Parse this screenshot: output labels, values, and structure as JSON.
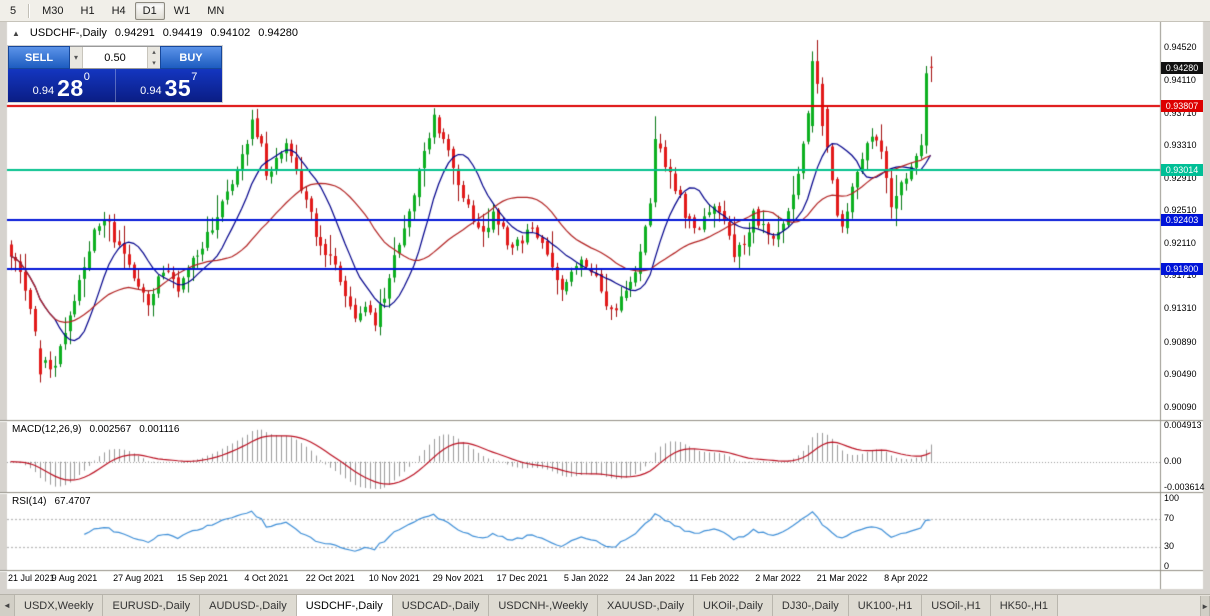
{
  "icons": {
    "collapse": "▲",
    "caret_down": "▾",
    "caret_up": "▴",
    "tab_left": "◄",
    "tab_right": "►"
  },
  "toolbar": {
    "timeframes": [
      {
        "label": "5",
        "active": false
      },
      {
        "label": "M30",
        "active": false
      },
      {
        "label": "H1",
        "active": false
      },
      {
        "label": "H4",
        "active": false
      },
      {
        "label": "D1",
        "active": true
      },
      {
        "label": "W1",
        "active": false
      },
      {
        "label": "MN",
        "active": false
      }
    ]
  },
  "chart_window": {
    "title": {
      "symbol": "USDCHF-,Daily",
      "open": "0.94291",
      "high": "0.94419",
      "low": "0.94102",
      "close": "0.94280"
    },
    "trade_panel": {
      "sell_label": "SELL",
      "buy_label": "BUY",
      "lot_size": "0.50",
      "bid": {
        "prefix": "0.94",
        "big": "28",
        "sup": "0",
        "full": "0.94280"
      },
      "ask": {
        "prefix": "0.94",
        "big": "35",
        "sup": "7",
        "full": "0.94357"
      }
    }
  },
  "chart_data": {
    "type": "candlestick",
    "symbol": "USDCHF-",
    "timeframe": "Daily",
    "latest_ohlc": {
      "open": 0.94291,
      "high": 0.94419,
      "low": 0.94102,
      "close": 0.9428
    },
    "y_range": [
      0.8995,
      0.9483
    ],
    "y_ticks": [
      "0.94520",
      "0.94110",
      "0.93710",
      "0.93310",
      "0.92910",
      "0.92510",
      "0.92110",
      "0.91710",
      "0.91310",
      "0.90890",
      "0.90490",
      "0.90090"
    ],
    "x_ticks": [
      "21 Jul 2021",
      "9 Aug 2021",
      "27 Aug 2021",
      "15 Sep 2021",
      "4 Oct 2021",
      "22 Oct 2021",
      "10 Nov 2021",
      "29 Nov 2021",
      "17 Dec 2021",
      "5 Jan 2022",
      "24 Jan 2022",
      "11 Feb 2022",
      "2 Mar 2022",
      "21 Mar 2022",
      "8 Apr 2022"
    ],
    "hlines": [
      {
        "price": 0.93807,
        "color": "#dd0000"
      },
      {
        "price": 0.93014,
        "color": "#00c08b"
      },
      {
        "price": 0.92403,
        "color": "#0014d8"
      },
      {
        "price": 0.918,
        "color": "#0014d8"
      }
    ],
    "price_badges": [
      {
        "name": "current-price-badge",
        "value": "0.94280",
        "color": "#111111"
      },
      {
        "name": "resistance-line-badge",
        "value": "0.93807",
        "color": "#dd0000"
      },
      {
        "name": "teal-level-badge",
        "value": "0.93014",
        "color": "#00bf96"
      },
      {
        "name": "support-line-badge-1",
        "value": "0.92403",
        "color": "#0014d8"
      },
      {
        "name": "support-line-badge-2",
        "value": "0.91800",
        "color": "#0014d8"
      }
    ],
    "colors": {
      "bull": "#0db020",
      "bear": "#e21a1a",
      "bull_wick": "#0a7a17",
      "bear_wick": "#a31111",
      "ma_fast": "#00008b",
      "ma_slow": "#b22222",
      "macd_hist": "#9b9b9b",
      "macd_signal": "#bb1122",
      "rsi_line": "#4090d8"
    },
    "candles": {
      "count": 188,
      "seed": 9,
      "path_waypoints": [
        [
          0,
          0.92
        ],
        [
          2,
          0.9175
        ],
        [
          4,
          0.9135
        ],
        [
          6,
          0.907
        ],
        [
          8,
          0.9052
        ],
        [
          10,
          0.9078
        ],
        [
          12,
          0.912
        ],
        [
          14,
          0.9165
        ],
        [
          16,
          0.9208
        ],
        [
          18,
          0.9238
        ],
        [
          20,
          0.9232
        ],
        [
          22,
          0.9205
        ],
        [
          24,
          0.918
        ],
        [
          26,
          0.9155
        ],
        [
          28,
          0.9142
        ],
        [
          30,
          0.9165
        ],
        [
          32,
          0.918
        ],
        [
          34,
          0.9152
        ],
        [
          36,
          0.9176
        ],
        [
          38,
          0.92
        ],
        [
          40,
          0.9222
        ],
        [
          42,
          0.9246
        ],
        [
          44,
          0.9272
        ],
        [
          46,
          0.9305
        ],
        [
          48,
          0.9338
        ],
        [
          49,
          0.9362
        ],
        [
          51,
          0.933
        ],
        [
          52,
          0.9296
        ],
        [
          54,
          0.9315
        ],
        [
          56,
          0.933
        ],
        [
          58,
          0.9302
        ],
        [
          60,
          0.9262
        ],
        [
          62,
          0.9226
        ],
        [
          64,
          0.92
        ],
        [
          66,
          0.918
        ],
        [
          68,
          0.915
        ],
        [
          70,
          0.9124
        ],
        [
          72,
          0.9136
        ],
        [
          74,
          0.9116
        ],
        [
          76,
          0.9146
        ],
        [
          78,
          0.9192
        ],
        [
          80,
          0.9232
        ],
        [
          82,
          0.9272
        ],
        [
          84,
          0.9322
        ],
        [
          86,
          0.9366
        ],
        [
          88,
          0.9338
        ],
        [
          90,
          0.9304
        ],
        [
          92,
          0.927
        ],
        [
          94,
          0.9242
        ],
        [
          96,
          0.9222
        ],
        [
          98,
          0.9246
        ],
        [
          100,
          0.9226
        ],
        [
          102,
          0.9206
        ],
        [
          104,
          0.9216
        ],
        [
          106,
          0.9236
        ],
        [
          108,
          0.9212
        ],
        [
          110,
          0.9182
        ],
        [
          112,
          0.9158
        ],
        [
          114,
          0.9176
        ],
        [
          116,
          0.9196
        ],
        [
          118,
          0.918
        ],
        [
          120,
          0.9154
        ],
        [
          122,
          0.9124
        ],
        [
          124,
          0.9142
        ],
        [
          126,
          0.9168
        ],
        [
          128,
          0.9196
        ],
        [
          130,
          0.9262
        ],
        [
          131,
          0.9338
        ],
        [
          133,
          0.9312
        ],
        [
          135,
          0.9282
        ],
        [
          137,
          0.9248
        ],
        [
          139,
          0.9224
        ],
        [
          141,
          0.9244
        ],
        [
          143,
          0.9258
        ],
        [
          145,
          0.9238
        ],
        [
          147,
          0.9196
        ],
        [
          149,
          0.9214
        ],
        [
          151,
          0.9246
        ],
        [
          153,
          0.923
        ],
        [
          155,
          0.9212
        ],
        [
          157,
          0.9232
        ],
        [
          159,
          0.9278
        ],
        [
          161,
          0.933
        ],
        [
          163,
          0.942
        ],
        [
          164,
          0.943
        ],
        [
          165,
          0.9378
        ],
        [
          166,
          0.933
        ],
        [
          167,
          0.9284
        ],
        [
          168,
          0.925
        ],
        [
          169,
          0.9228
        ],
        [
          171,
          0.9276
        ],
        [
          173,
          0.9322
        ],
        [
          175,
          0.9348
        ],
        [
          177,
          0.933
        ],
        [
          179,
          0.9258
        ],
        [
          181,
          0.9286
        ],
        [
          183,
          0.9306
        ],
        [
          185,
          0.933
        ],
        [
          186,
          0.942
        ],
        [
          187,
          0.9428
        ]
      ],
      "overrides": {
        "6": [
          0.9082,
          0.9092,
          0.904,
          0.905
        ],
        "49": [
          0.934,
          0.9376,
          0.9332,
          0.9364
        ],
        "86": [
          0.9342,
          0.9378,
          0.9334,
          0.937
        ],
        "131": [
          0.9262,
          0.9368,
          0.9256,
          0.934
        ],
        "163": [
          0.9356,
          0.9448,
          0.9348,
          0.9436
        ],
        "164": [
          0.9436,
          0.9462,
          0.9396,
          0.9408
        ],
        "165": [
          0.9408,
          0.9416,
          0.9344,
          0.9356
        ],
        "186": [
          0.9332,
          0.943,
          0.9322,
          0.9421
        ],
        "187": [
          0.94291,
          0.94419,
          0.94102,
          0.9428
        ]
      }
    },
    "indicators": {
      "ma_fast": {
        "period": 10,
        "color": "#00008b"
      },
      "ma_slow": {
        "period": 25,
        "color": "#b22222"
      },
      "macd": {
        "label": "MACD(12,26,9)",
        "value_main": "0.002567",
        "value_signal": "0.001116",
        "scale": [
          "0.004913",
          "0.00",
          "-0.003614"
        ]
      },
      "rsi": {
        "label": "RSI(14)",
        "value": "67.4707",
        "scale": [
          "100",
          "70",
          "30",
          "0"
        ],
        "levels": [
          70,
          30
        ]
      }
    }
  },
  "tabbar": {
    "tabs": [
      {
        "label": "USDX,Weekly",
        "active": false
      },
      {
        "label": "EURUSD-,Daily",
        "active": false
      },
      {
        "label": "AUDUSD-,Daily",
        "active": false
      },
      {
        "label": "USDCHF-,Daily",
        "active": true
      },
      {
        "label": "USDCAD-,Daily",
        "active": false
      },
      {
        "label": "USDCNH-,Weekly",
        "active": false
      },
      {
        "label": "XAUUSD-,Daily",
        "active": false
      },
      {
        "label": "UKOil-,Daily",
        "active": false
      },
      {
        "label": "DJ30-,Daily",
        "active": false
      },
      {
        "label": "UK100-,H1",
        "active": false
      },
      {
        "label": "USOil-,H1",
        "active": false
      },
      {
        "label": "HK50-,H1",
        "active": false
      }
    ]
  }
}
